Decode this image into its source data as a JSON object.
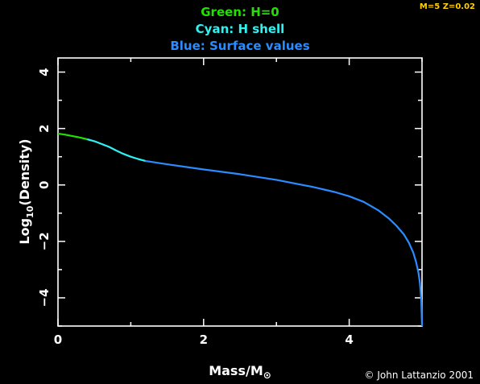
{
  "header": {
    "line1": "Green: H=0",
    "line2": "Cyan: H shell",
    "line3": "Blue: Surface values",
    "corner_label": "M=5 Z=0.02"
  },
  "footer": {
    "credit": "© John Lattanzio 2001"
  },
  "colors": {
    "green": "#22e000",
    "cyan": "#2ef2f2",
    "blue": "#2a8cff",
    "corner": "#ffd000",
    "axes": "#ffffff",
    "background": "#000000"
  },
  "chart_data": {
    "type": "line",
    "xlabel": "Mass/M",
    "xlabel_symbol": "⊙",
    "ylabel": "Log",
    "ylabel_sub": "10",
    "ylabel_rest": "(Density)",
    "xlim": [
      0,
      5
    ],
    "ylim": [
      -5,
      4.5
    ],
    "x_ticks": [
      0,
      2,
      4
    ],
    "y_ticks": [
      4,
      2,
      0,
      -2,
      -4
    ],
    "x_tick_labels": [
      "0",
      "2",
      "4"
    ],
    "y_tick_labels": [
      "4",
      "2",
      "0",
      "−2",
      "−4"
    ],
    "series": [
      {
        "name": "H=0",
        "color_key": "green",
        "x": [
          0,
          0.1,
          0.2,
          0.3,
          0.4
        ],
        "y": [
          1.82,
          1.78,
          1.73,
          1.68,
          1.62
        ]
      },
      {
        "name": "H shell",
        "color_key": "cyan",
        "x": [
          0.4,
          0.5,
          0.6,
          0.7,
          0.8,
          0.9,
          1.0,
          1.1,
          1.2
        ],
        "y": [
          1.62,
          1.55,
          1.45,
          1.35,
          1.22,
          1.1,
          1.0,
          0.92,
          0.85
        ]
      },
      {
        "name": "Surface values",
        "color_key": "blue",
        "x": [
          1.2,
          1.5,
          2.0,
          2.5,
          3.0,
          3.5,
          3.8,
          4.0,
          4.2,
          4.4,
          4.55,
          4.65,
          4.75,
          4.82,
          4.88,
          4.92,
          4.95,
          4.97,
          4.98,
          4.99,
          4.995,
          5.0
        ],
        "y": [
          0.85,
          0.73,
          0.55,
          0.38,
          0.18,
          -0.07,
          -0.25,
          -0.4,
          -0.6,
          -0.9,
          -1.2,
          -1.45,
          -1.75,
          -2.05,
          -2.4,
          -2.75,
          -3.1,
          -3.45,
          -3.75,
          -4.1,
          -4.5,
          -5.0
        ]
      }
    ]
  }
}
